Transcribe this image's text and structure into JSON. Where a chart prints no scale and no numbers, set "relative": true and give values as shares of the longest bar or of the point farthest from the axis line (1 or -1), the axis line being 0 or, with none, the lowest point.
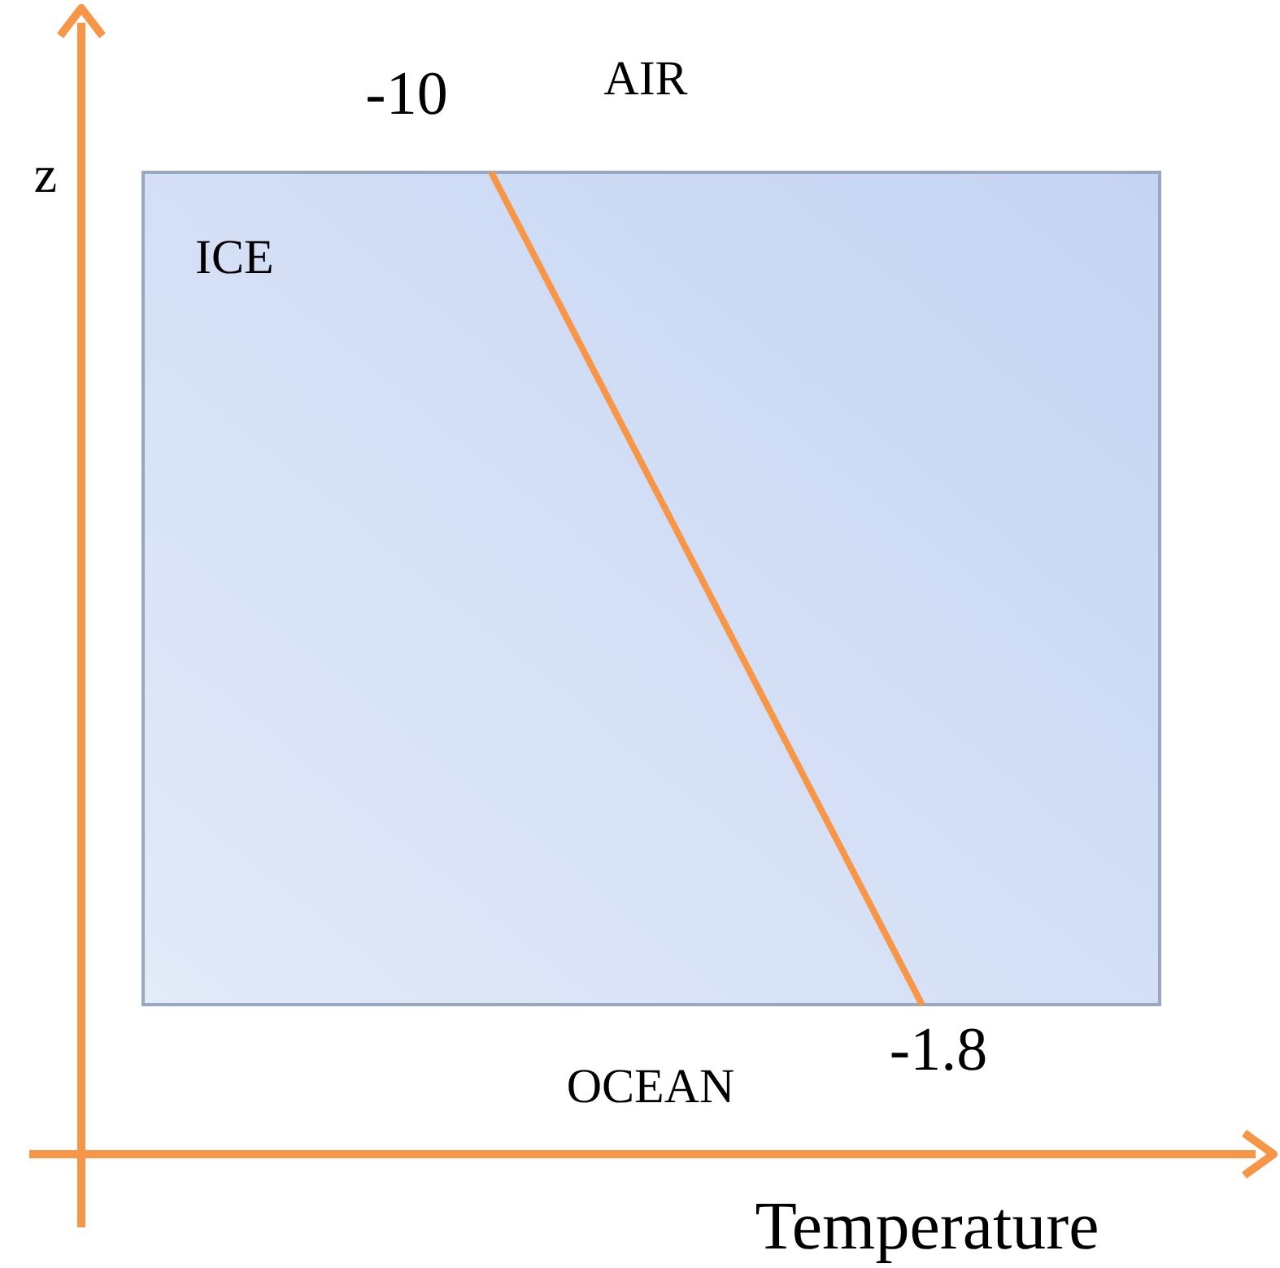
{
  "chart_data": {
    "type": "line",
    "relative": true,
    "xlabel": "Temperature",
    "ylabel": "z",
    "categories": [
      null,
      null
    ],
    "marker": "none",
    "line_style": "solid",
    "series": [
      {
        "values": [
          1,
          0.152
        ],
        "color": "#f79646"
      }
    ],
    "annotations": [
      "-10",
      "-1.8",
      "AIR",
      "ICE",
      "OCEAN"
    ]
  }
}
